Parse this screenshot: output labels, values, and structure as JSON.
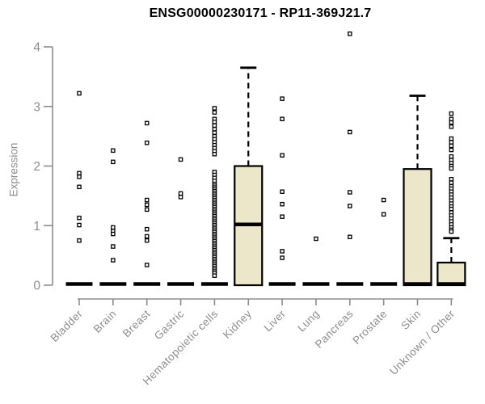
{
  "chart_data": {
    "type": "boxplot",
    "title": "ENSG00000230171 - RP11-369J21.7",
    "ylabel": "Expression",
    "xlabel": "",
    "ylim": [
      0,
      4
    ],
    "yticks": [
      0,
      1,
      2,
      3,
      4
    ],
    "grid": false,
    "legend": "none",
    "box_fill": "#ece7cb",
    "box_stroke": "#000000",
    "axis_color": "#8d8d8d",
    "categories": [
      {
        "label": "Bladder",
        "box": {
          "q1": 0,
          "median": 0,
          "q3": 0,
          "whisker_low": 0,
          "whisker_high": 0
        },
        "outliers": [
          3.22,
          1.88,
          1.82,
          1.65,
          1.13,
          1.01,
          0.75
        ]
      },
      {
        "label": "Brain",
        "box": {
          "q1": 0,
          "median": 0,
          "q3": 0,
          "whisker_low": 0,
          "whisker_high": 0
        },
        "outliers": [
          2.26,
          2.07,
          0.97,
          0.91,
          0.86,
          0.65,
          0.42
        ]
      },
      {
        "label": "Breast",
        "box": {
          "q1": 0,
          "median": 0,
          "q3": 0,
          "whisker_low": 0,
          "whisker_high": 0
        },
        "outliers": [
          2.72,
          2.39,
          1.43,
          1.35,
          1.27,
          0.94,
          0.82,
          0.75,
          0.34
        ]
      },
      {
        "label": "Gastric",
        "box": {
          "q1": 0,
          "median": 0,
          "q3": 0,
          "whisker_low": 0,
          "whisker_high": 0
        },
        "outliers": [
          2.11,
          1.54,
          1.48
        ]
      },
      {
        "label": "Hematopoietic cells",
        "box": {
          "q1": 0,
          "median": 0,
          "q3": 0,
          "whisker_low": 0,
          "whisker_high": 0
        },
        "outliers": [
          2.97,
          2.9,
          2.79,
          2.74,
          2.68,
          2.62,
          2.56,
          2.5,
          2.45,
          2.4,
          2.35,
          2.3,
          2.25,
          2.2,
          1.9,
          1.85,
          1.8,
          1.75,
          1.7,
          1.67,
          1.64,
          1.61,
          1.58,
          1.55,
          1.52,
          1.49,
          1.46,
          1.43,
          1.4,
          1.37,
          1.34,
          1.31,
          1.28,
          1.25,
          1.22,
          1.19,
          1.16,
          1.13,
          1.1,
          1.07,
          1.04,
          1.01,
          0.98,
          0.95,
          0.92,
          0.89,
          0.86,
          0.83,
          0.8,
          0.77,
          0.74,
          0.71,
          0.68,
          0.65,
          0.62,
          0.59,
          0.56,
          0.53,
          0.5,
          0.47,
          0.44,
          0.41,
          0.38,
          0.35,
          0.32,
          0.29,
          0.26,
          0.23,
          0.2,
          0.16
        ]
      },
      {
        "label": "Kidney",
        "box": {
          "q1": 0,
          "median": 1.0,
          "q3": 2.0,
          "whisker_low": 0,
          "whisker_high": 3.65
        },
        "outliers": []
      },
      {
        "label": "Liver",
        "box": {
          "q1": 0,
          "median": 0,
          "q3": 0,
          "whisker_low": 0,
          "whisker_high": 0
        },
        "outliers": [
          3.13,
          2.79,
          2.18,
          1.57,
          1.36,
          1.15,
          0.57,
          0.46
        ]
      },
      {
        "label": "Lung",
        "box": {
          "q1": 0,
          "median": 0,
          "q3": 0,
          "whisker_low": 0,
          "whisker_high": 0
        },
        "outliers": [
          0.78
        ]
      },
      {
        "label": "Pancreas",
        "box": {
          "q1": 0,
          "median": 0,
          "q3": 0,
          "whisker_low": 0,
          "whisker_high": 0
        },
        "outliers": [
          4.22,
          2.57,
          1.56,
          1.33,
          0.81
        ]
      },
      {
        "label": "Prostate",
        "box": {
          "q1": 0,
          "median": 0,
          "q3": 0,
          "whisker_low": 0,
          "whisker_high": 0
        },
        "outliers": [
          1.43,
          1.19
        ]
      },
      {
        "label": "Skin",
        "box": {
          "q1": 0,
          "median": 0,
          "q3": 1.95,
          "whisker_low": 0,
          "whisker_high": 3.18
        },
        "outliers": []
      },
      {
        "label": "Unknown / Other",
        "box": {
          "q1": 0,
          "median": 0,
          "q3": 0.38,
          "whisker_low": 0,
          "whisker_high": 0.79
        },
        "outliers": [
          2.88,
          2.79,
          2.73,
          2.66,
          2.46,
          2.4,
          2.34,
          2.27,
          2.16,
          2.1,
          2.05,
          2.0,
          1.96,
          1.78,
          1.72,
          1.66,
          1.62,
          1.57,
          1.52,
          1.47,
          1.42,
          1.37,
          1.32,
          1.28,
          1.22,
          1.17,
          1.12,
          1.07,
          1.02,
          0.97,
          0.93,
          0.9
        ]
      }
    ]
  }
}
